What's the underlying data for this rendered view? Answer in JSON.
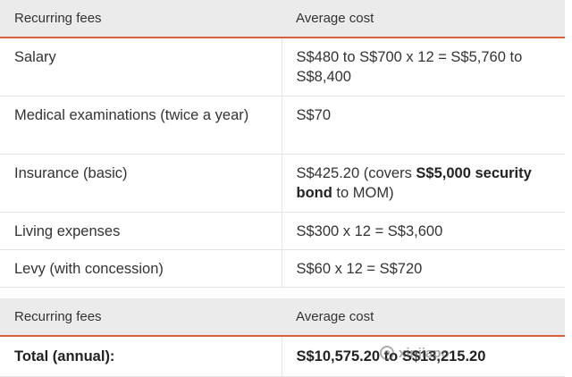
{
  "table1": {
    "headers": [
      "Recurring fees",
      "Average cost"
    ],
    "rows": [
      {
        "fee": "Salary",
        "cost": "S$480 to S$700 x 12 = S$5,760 to S$8,400"
      },
      {
        "fee": "Medical examinations (twice a year)",
        "cost": "S$70"
      },
      {
        "fee": "Insurance (basic)",
        "cost_prefix": "S$425.20 (covers ",
        "cost_bold": "S$5,000 security bond",
        "cost_suffix": " to MOM)"
      },
      {
        "fee": "Living expenses",
        "cost": "S$300 x 12 = S$3,600"
      },
      {
        "fee": "Levy (with concession)",
        "cost": "S$60 x 12 = S$720"
      }
    ]
  },
  "table2": {
    "headers": [
      "Recurring fees",
      "Average cost"
    ],
    "total_label": "Total (annual):",
    "total_value": "S$10,575.20 to S$13,215.20"
  },
  "watermark": {
    "icon": "wechat-icon",
    "text": "xinjiapo"
  },
  "colors": {
    "header_bg": "#ebebeb",
    "header_accent": "#d9603b"
  }
}
